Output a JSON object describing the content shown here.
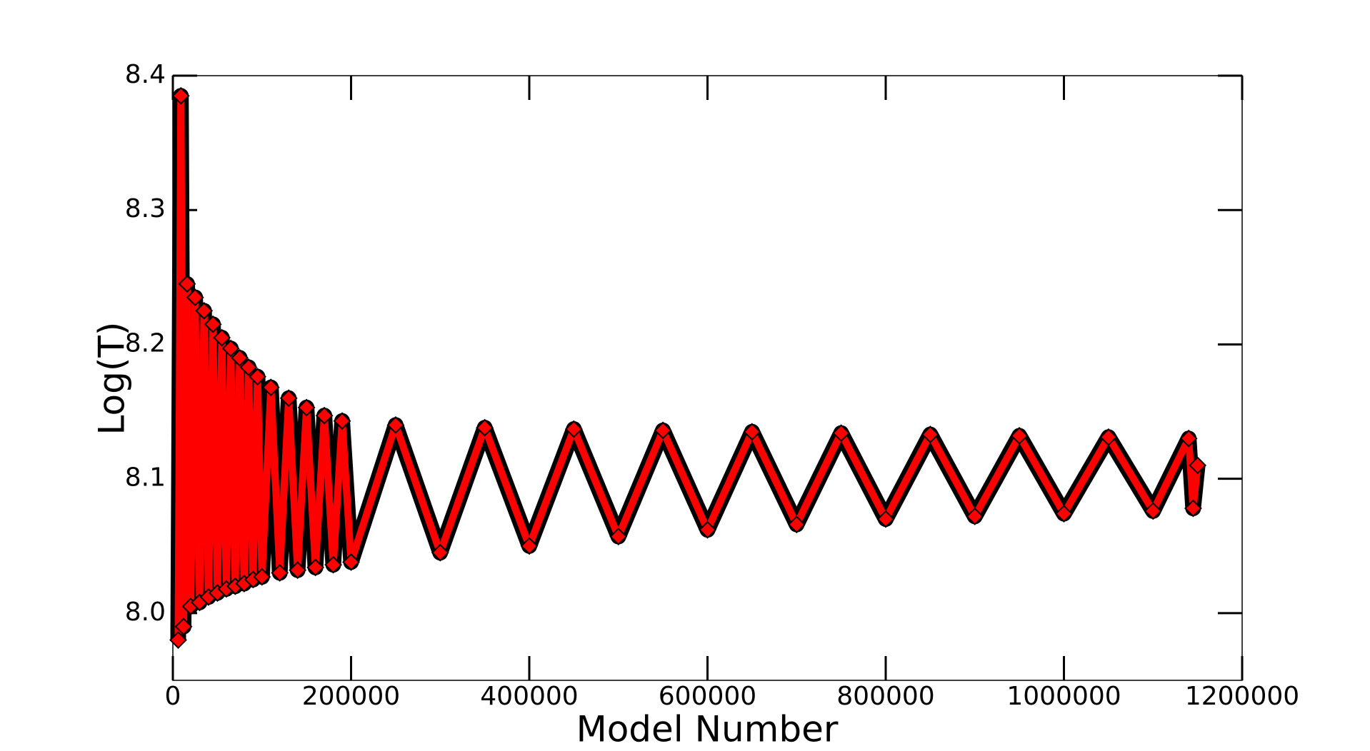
{
  "chart_data": {
    "type": "line",
    "x_label": "Model Number",
    "y_label": "Log(T)",
    "xlim": [
      0,
      1200000
    ],
    "ylim": [
      7.95,
      8.4
    ],
    "xticks": [
      0,
      200000,
      400000,
      600000,
      800000,
      1000000,
      1200000
    ],
    "yticks": [
      {
        "value": 8.0,
        "label": "8.0"
      },
      {
        "value": 8.1,
        "label": "8.1"
      },
      {
        "value": 8.2,
        "label": "8.2"
      },
      {
        "value": 8.3,
        "label": "8.3"
      },
      {
        "value": 8.4,
        "label": "8.4"
      }
    ],
    "grid": false,
    "series": [
      {
        "color": "#ff0000",
        "edge_color": "#000000",
        "x": [
          6000,
          9000,
          12000,
          16000,
          20000,
          25000,
          30000,
          35000,
          40000,
          45000,
          50000,
          55000,
          60000,
          65000,
          70000,
          75000,
          80000,
          85000,
          90000,
          95000,
          100000,
          110000,
          120000,
          130000,
          140000,
          150000,
          160000,
          170000,
          180000,
          190000,
          200000,
          250000,
          300000,
          350000,
          400000,
          450000,
          500000,
          550000,
          600000,
          650000,
          700000,
          750000,
          800000,
          850000,
          900000,
          950000,
          1000000,
          1050000,
          1100000,
          1140000,
          1145000,
          1150000
        ],
        "values": [
          7.98,
          8.385,
          7.99,
          8.245,
          8.005,
          8.235,
          8.008,
          8.225,
          8.012,
          8.215,
          8.015,
          8.205,
          8.018,
          8.197,
          8.02,
          8.19,
          8.022,
          8.183,
          8.025,
          8.176,
          8.027,
          8.168,
          8.03,
          8.16,
          8.032,
          8.153,
          8.034,
          8.147,
          8.036,
          8.143,
          8.038,
          8.14,
          8.045,
          8.138,
          8.05,
          8.137,
          8.057,
          8.136,
          8.062,
          8.135,
          8.066,
          8.134,
          8.07,
          8.133,
          8.072,
          8.132,
          8.074,
          8.131,
          8.076,
          8.13,
          8.078,
          8.11
        ]
      }
    ]
  }
}
